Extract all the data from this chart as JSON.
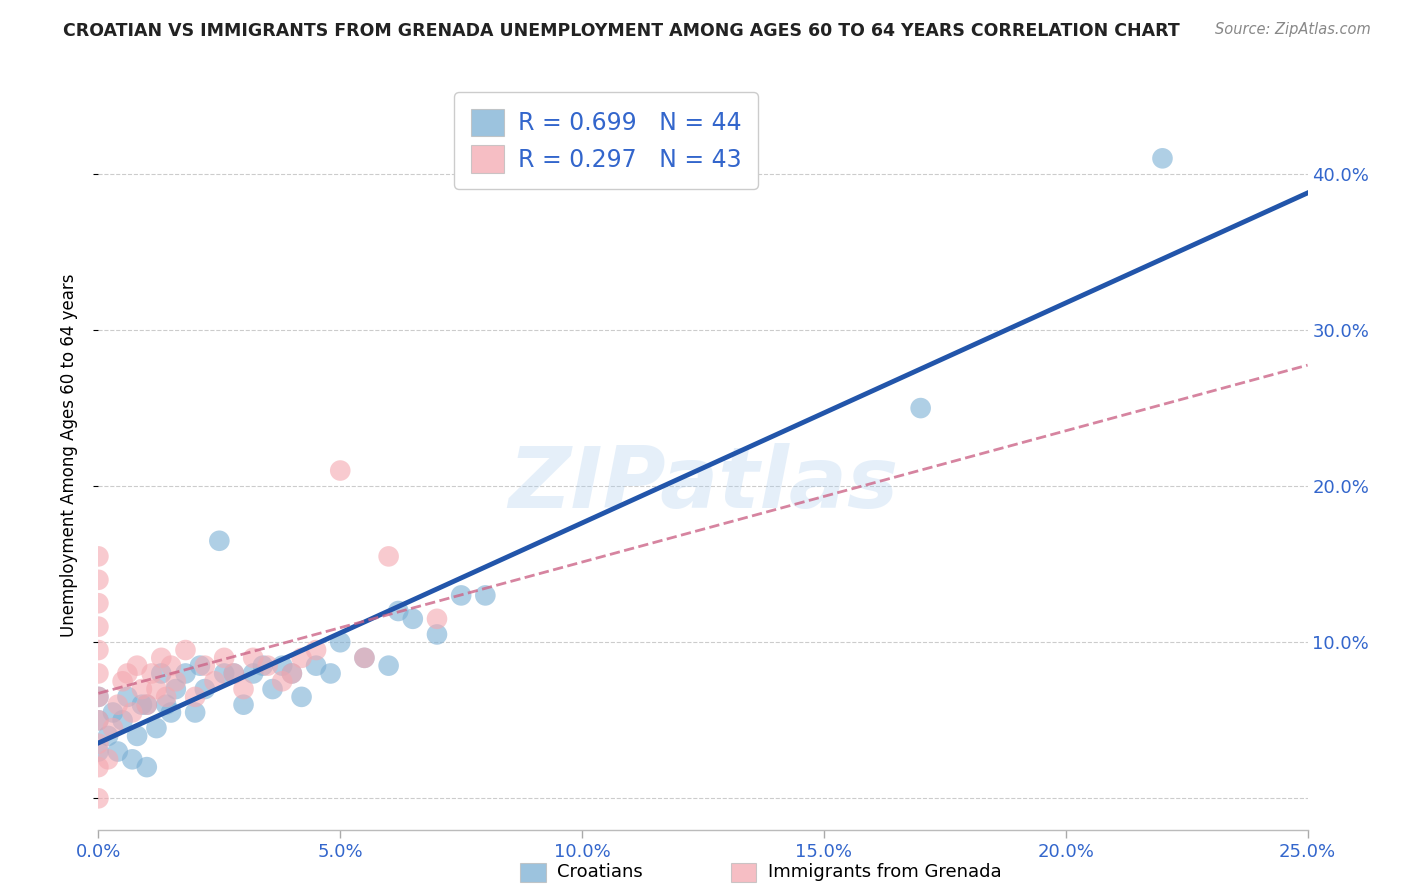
{
  "title": "CROATIAN VS IMMIGRANTS FROM GRENADA UNEMPLOYMENT AMONG AGES 60 TO 64 YEARS CORRELATION CHART",
  "source": "Source: ZipAtlas.com",
  "ylabel": "Unemployment Among Ages 60 to 64 years",
  "xlim": [
    0.0,
    0.25
  ],
  "ylim": [
    -0.02,
    0.46
  ],
  "xticks": [
    0.0,
    0.05,
    0.1,
    0.15,
    0.2,
    0.25
  ],
  "xtick_labels": [
    "0.0%",
    "5.0%",
    "10.0%",
    "15.0%",
    "20.0%",
    "25.0%"
  ],
  "yticks": [
    0.0,
    0.1,
    0.2,
    0.3,
    0.4
  ],
  "ytick_labels": [
    "",
    "10.0%",
    "20.0%",
    "30.0%",
    "40.0%"
  ],
  "blue_color": "#7BAFD4",
  "pink_color": "#F4A8B0",
  "blue_line_color": "#2255AA",
  "pink_line_color": "#CC6688",
  "r_blue": 0.699,
  "n_blue": 44,
  "r_pink": 0.297,
  "n_pink": 43,
  "watermark": "ZIPatlas",
  "legend_croatians": "Croatians",
  "legend_grenada": "Immigrants from Grenada",
  "blue_scatter_x": [
    0.0,
    0.0,
    0.0,
    0.002,
    0.003,
    0.004,
    0.005,
    0.006,
    0.007,
    0.008,
    0.009,
    0.01,
    0.01,
    0.012,
    0.013,
    0.014,
    0.015,
    0.016,
    0.018,
    0.02,
    0.021,
    0.022,
    0.025,
    0.026,
    0.028,
    0.03,
    0.032,
    0.034,
    0.036,
    0.038,
    0.04,
    0.042,
    0.045,
    0.048,
    0.05,
    0.055,
    0.06,
    0.062,
    0.065,
    0.07,
    0.075,
    0.08,
    0.17,
    0.22
  ],
  "blue_scatter_y": [
    0.03,
    0.05,
    0.065,
    0.04,
    0.055,
    0.03,
    0.05,
    0.065,
    0.025,
    0.04,
    0.06,
    0.02,
    0.06,
    0.045,
    0.08,
    0.06,
    0.055,
    0.07,
    0.08,
    0.055,
    0.085,
    0.07,
    0.165,
    0.08,
    0.08,
    0.06,
    0.08,
    0.085,
    0.07,
    0.085,
    0.08,
    0.065,
    0.085,
    0.08,
    0.1,
    0.09,
    0.085,
    0.12,
    0.115,
    0.105,
    0.13,
    0.13,
    0.25,
    0.41
  ],
  "pink_scatter_x": [
    0.0,
    0.0,
    0.0,
    0.0,
    0.0,
    0.0,
    0.0,
    0.0,
    0.0,
    0.0,
    0.0,
    0.002,
    0.003,
    0.004,
    0.005,
    0.006,
    0.007,
    0.008,
    0.009,
    0.01,
    0.011,
    0.012,
    0.013,
    0.014,
    0.015,
    0.016,
    0.018,
    0.02,
    0.022,
    0.024,
    0.026,
    0.028,
    0.03,
    0.032,
    0.035,
    0.038,
    0.04,
    0.042,
    0.045,
    0.05,
    0.055,
    0.06,
    0.07
  ],
  "pink_scatter_y": [
    0.0,
    0.02,
    0.035,
    0.05,
    0.065,
    0.08,
    0.095,
    0.11,
    0.125,
    0.14,
    0.155,
    0.025,
    0.045,
    0.06,
    0.075,
    0.08,
    0.055,
    0.085,
    0.07,
    0.06,
    0.08,
    0.07,
    0.09,
    0.065,
    0.085,
    0.075,
    0.095,
    0.065,
    0.085,
    0.075,
    0.09,
    0.08,
    0.07,
    0.09,
    0.085,
    0.075,
    0.08,
    0.09,
    0.095,
    0.21,
    0.09,
    0.155,
    0.115
  ],
  "background_color": "#FFFFFF",
  "grid_color": "#CCCCCC",
  "text_color": "#3366CC",
  "title_color": "#222222",
  "source_color": "#888888"
}
